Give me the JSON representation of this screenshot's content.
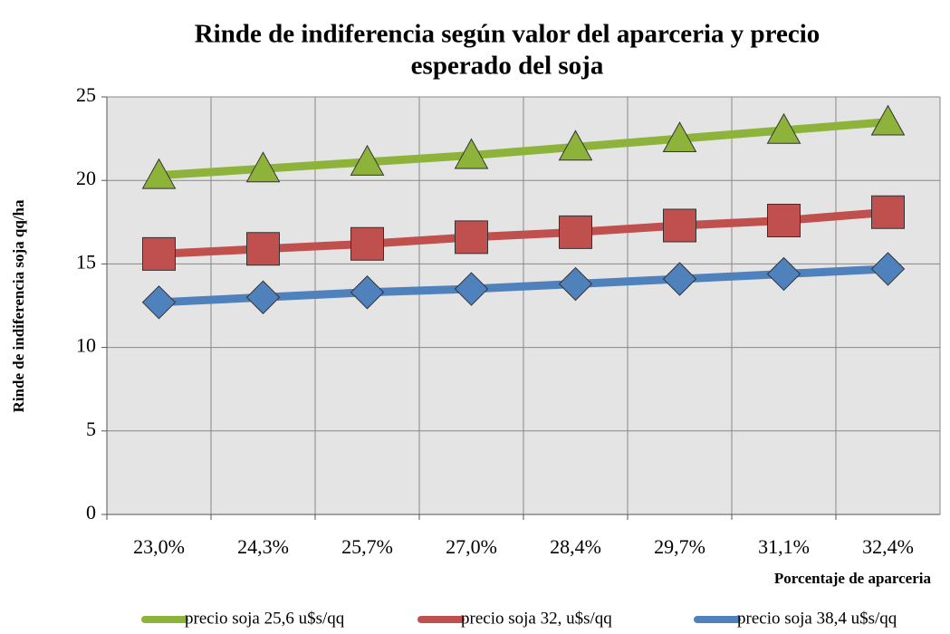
{
  "chart_data": {
    "type": "line",
    "title": [
      "Rinde de indiferencia según valor del aparceria y precio",
      "esperado del soja"
    ],
    "x_label": "Porcentaje de aparceria",
    "y_label": "Rinde de indiferencia soja qq/ha",
    "categories": [
      "23,0%",
      "24,3%",
      "25,7%",
      "27,0%",
      "28,4%",
      "29,7%",
      "31,1%",
      "32,4%"
    ],
    "series": [
      {
        "name": "precio soja 25,6 u$s/qq",
        "color": "#8db33a",
        "marker": "triangle",
        "values": [
          20.3,
          20.7,
          21.1,
          21.5,
          22.0,
          22.5,
          23.0,
          23.5
        ]
      },
      {
        "name": "precio soja 32,  u$s/qq",
        "color": "#c0504d",
        "marker": "square",
        "values": [
          15.6,
          15.9,
          16.2,
          16.6,
          16.9,
          17.3,
          17.6,
          18.1
        ]
      },
      {
        "name": "precio soja 38,4 u$s/qq",
        "color": "#4f81bd",
        "marker": "diamond",
        "values": [
          12.7,
          13.0,
          13.3,
          13.5,
          13.8,
          14.1,
          14.4,
          14.7
        ]
      }
    ],
    "ylim": [
      0,
      25
    ],
    "yticks": [
      0,
      5,
      10,
      15,
      20,
      25
    ],
    "grid": true,
    "legend": "bottom"
  }
}
